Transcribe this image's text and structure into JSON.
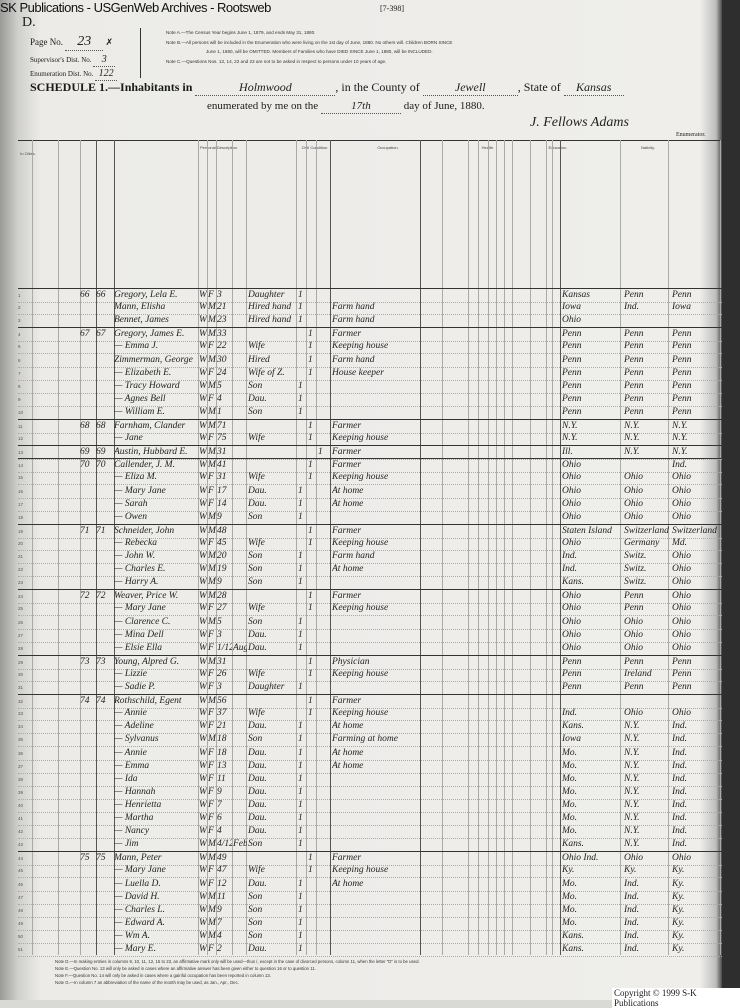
{
  "watermark": "SK Publications - USGenWeb Archives - Rootsweb",
  "form_code": "[7-398]",
  "corner_letter": "D.",
  "header": {
    "page_label": "Page No.",
    "page_no": "23",
    "page_mark": "✗",
    "supervisor_label": "Supervisor's Dist. No.",
    "supervisor_no": "3",
    "enumeration_label": "Enumeration Dist. No.",
    "enumeration_no": "122",
    "note_a": "Note A.—The Census Year begins June 1, 1879, and ends May 31, 1880.",
    "note_b": "Note B.—All persons will be included in the Enumeration who were living on the 1st day of June, 1880. No others will. Children BORN SINCE",
    "note_b2": "June 1, 1880, will be OMITTED. Members of Families who have DIED SINCE June 1, 1880, will be INCLUDED.",
    "note_c": "Note C.—Questions Nos. 13, 14, 22 and 23 are not to be asked in respect to persons under 10 years of age.",
    "schedule_label": "SCHEDULE 1.—Inhabitants in",
    "place": "Holmwood",
    "county_label": ", in the County of",
    "county": "Jewell",
    "state_label": ", State of",
    "state": "Kansas",
    "enumerated_label": "enumerated by me on the",
    "day": "17th",
    "month_label": "day of June, 1880.",
    "enumerator": "J. Fellows Adams",
    "enumerator_label": "Enumerator."
  },
  "column_groups": [
    "In Cities.",
    "Personal Description.",
    "Civil Condition.",
    "Occupation.",
    "Health.",
    "Education.",
    "Nativity."
  ],
  "rows": [
    {
      "n": "1",
      "dw": "66",
      "fa": "66",
      "name": "Gregory, Lela E.",
      "c": "W",
      "s": "F",
      "a": "3",
      "rel": "Daughter",
      "single": "1",
      "occ": "",
      "b": "Kansas",
      "f": "Penn",
      "m": "Penn"
    },
    {
      "n": "2",
      "dw": "",
      "fa": "",
      "name": "Mann, Elisha",
      "c": "W",
      "s": "M",
      "a": "21",
      "rel": "Hired hand",
      "single": "1",
      "occ": "Farm hand",
      "b": "Iowa",
      "f": "Ind.",
      "m": "Iowa"
    },
    {
      "n": "3",
      "dw": "",
      "fa": "",
      "name": "Bennet, James",
      "c": "W",
      "s": "M",
      "a": "23",
      "rel": "Hired hand",
      "single": "1",
      "occ": "Farm hand",
      "b": "Ohio",
      "f": "",
      "m": ""
    },
    {
      "n": "4",
      "dw": "67",
      "fa": "67",
      "name": "Gregory, James E.",
      "c": "W",
      "s": "M",
      "a": "33",
      "rel": "",
      "married": "1",
      "occ": "Farmer",
      "b": "Penn",
      "f": "Penn",
      "m": "Penn"
    },
    {
      "n": "5",
      "dw": "",
      "fa": "",
      "name": "— Emma J.",
      "c": "W",
      "s": "F",
      "a": "22",
      "rel": "Wife",
      "married": "1",
      "occ": "Keeping house",
      "b": "Penn",
      "f": "Penn",
      "m": "Penn"
    },
    {
      "n": "6",
      "dw": "",
      "fa": "",
      "name": "Zimmerman, George",
      "c": "W",
      "s": "M",
      "a": "30",
      "rel": "Hired",
      "married": "1",
      "occ": "Farm hand",
      "b": "Penn",
      "f": "Penn",
      "m": "Penn"
    },
    {
      "n": "7",
      "dw": "",
      "fa": "",
      "name": "— Elizabeth E.",
      "c": "W",
      "s": "F",
      "a": "24",
      "rel": "Wife of Z.",
      "married": "1",
      "occ": "House keeper",
      "b": "Penn",
      "f": "Penn",
      "m": "Penn"
    },
    {
      "n": "8",
      "dw": "",
      "fa": "",
      "name": "— Tracy Howard",
      "c": "W",
      "s": "M",
      "a": "5",
      "rel": "Son",
      "single": "1",
      "occ": "",
      "b": "Penn",
      "f": "Penn",
      "m": "Penn"
    },
    {
      "n": "9",
      "dw": "",
      "fa": "",
      "name": "— Agnes Bell",
      "c": "W",
      "s": "F",
      "a": "4",
      "rel": "Dau.",
      "single": "1",
      "occ": "",
      "b": "Penn",
      "f": "Penn",
      "m": "Penn"
    },
    {
      "n": "10",
      "dw": "",
      "fa": "",
      "name": "— William E.",
      "c": "W",
      "s": "M",
      "a": "1",
      "rel": "Son",
      "single": "1",
      "occ": "",
      "b": "Penn",
      "f": "Penn",
      "m": "Penn"
    },
    {
      "n": "11",
      "dw": "68",
      "fa": "68",
      "name": "Farnham, Clander",
      "c": "W",
      "s": "M",
      "a": "71",
      "rel": "",
      "married": "1",
      "occ": "Farmer",
      "b": "N.Y.",
      "f": "N.Y.",
      "m": "N.Y."
    },
    {
      "n": "12",
      "dw": "",
      "fa": "",
      "name": "— Jane",
      "c": "W",
      "s": "F",
      "a": "75",
      "rel": "Wife",
      "married": "1",
      "occ": "Keeping house",
      "b": "N.Y.",
      "f": "N.Y.",
      "m": "N.Y."
    },
    {
      "n": "13",
      "dw": "69",
      "fa": "69",
      "name": "Austin, Hubbard E.",
      "c": "W",
      "s": "M",
      "a": "31",
      "rel": "",
      "widowed": "1",
      "occ": "Farmer",
      "b": "Ill.",
      "f": "N.Y.",
      "m": "N.Y."
    },
    {
      "n": "14",
      "dw": "70",
      "fa": "70",
      "name": "Callender, J. M.",
      "c": "W",
      "s": "M",
      "a": "41",
      "rel": "",
      "married": "1",
      "occ": "Farmer",
      "b": "Ohio",
      "f": "",
      "m": "Ind."
    },
    {
      "n": "15",
      "dw": "",
      "fa": "",
      "name": "— Eliza M.",
      "c": "W",
      "s": "F",
      "a": "31",
      "rel": "Wife",
      "married": "1",
      "occ": "Keeping house",
      "b": "Ohio",
      "f": "Ohio",
      "m": "Ohio"
    },
    {
      "n": "16",
      "dw": "",
      "fa": "",
      "name": "— Mary Jane",
      "c": "W",
      "s": "F",
      "a": "17",
      "rel": "Dau.",
      "single": "1",
      "occ": "At home",
      "b": "Ohio",
      "f": "Ohio",
      "m": "Ohio"
    },
    {
      "n": "17",
      "dw": "",
      "fa": "",
      "name": "— Sarah",
      "c": "W",
      "s": "F",
      "a": "14",
      "rel": "Dau.",
      "single": "1",
      "occ": "At home",
      "b": "Ohio",
      "f": "Ohio",
      "m": "Ohio"
    },
    {
      "n": "18",
      "dw": "",
      "fa": "",
      "name": "— Owen",
      "c": "W",
      "s": "M",
      "a": "9",
      "rel": "Son",
      "single": "1",
      "occ": "",
      "b": "Ohio",
      "f": "Ohio",
      "m": "Ohio"
    },
    {
      "n": "19",
      "dw": "71",
      "fa": "71",
      "name": "Schneider, John",
      "c": "W",
      "s": "M",
      "a": "48",
      "rel": "",
      "married": "1",
      "occ": "Farmer",
      "b": "Staten Island",
      "f": "Switzerland",
      "m": "Switzerland"
    },
    {
      "n": "20",
      "dw": "",
      "fa": "",
      "name": "— Rebecka",
      "c": "W",
      "s": "F",
      "a": "45",
      "rel": "Wife",
      "married": "1",
      "occ": "Keeping house",
      "b": "Ohio",
      "f": "Germany",
      "m": "Md."
    },
    {
      "n": "21",
      "dw": "",
      "fa": "",
      "name": "— John W.",
      "c": "W",
      "s": "M",
      "a": "20",
      "rel": "Son",
      "single": "1",
      "occ": "Farm hand",
      "b": "Ind.",
      "f": "Switz.",
      "m": "Ohio"
    },
    {
      "n": "22",
      "dw": "",
      "fa": "",
      "name": "— Charles E.",
      "c": "W",
      "s": "M",
      "a": "19",
      "rel": "Son",
      "single": "1",
      "occ": "At home",
      "b": "Ind.",
      "f": "Switz.",
      "m": "Ohio"
    },
    {
      "n": "23",
      "dw": "",
      "fa": "",
      "name": "— Harry A.",
      "c": "W",
      "s": "M",
      "a": "9",
      "rel": "Son",
      "single": "1",
      "occ": "",
      "b": "Kans.",
      "f": "Switz.",
      "m": "Ohio"
    },
    {
      "n": "24",
      "dw": "72",
      "fa": "72",
      "name": "Weaver, Price W.",
      "c": "W",
      "s": "M",
      "a": "28",
      "rel": "",
      "married": "1",
      "occ": "Farmer",
      "b": "Ohio",
      "f": "Penn",
      "m": "Ohio"
    },
    {
      "n": "25",
      "dw": "",
      "fa": "",
      "name": "— Mary Jane",
      "c": "W",
      "s": "F",
      "a": "27",
      "rel": "Wife",
      "married": "1",
      "occ": "Keeping house",
      "b": "Ohio",
      "f": "Penn",
      "m": "Ohio"
    },
    {
      "n": "26",
      "dw": "",
      "fa": "",
      "name": "— Clarence C.",
      "c": "W",
      "s": "M",
      "a": "5",
      "rel": "Son",
      "single": "1",
      "occ": "",
      "b": "Ohio",
      "f": "Ohio",
      "m": "Ohio"
    },
    {
      "n": "27",
      "dw": "",
      "fa": "",
      "name": "— Mina Dell",
      "c": "W",
      "s": "F",
      "a": "3",
      "rel": "Dau.",
      "single": "1",
      "occ": "",
      "b": "Ohio",
      "f": "Ohio",
      "m": "Ohio"
    },
    {
      "n": "28",
      "dw": "",
      "fa": "",
      "name": "— Elsie Ella",
      "c": "W",
      "s": "F",
      "a": "1/12",
      "mo": "Aug",
      "rel": "Dau.",
      "single": "1",
      "occ": "",
      "b": "Ohio",
      "f": "Ohio",
      "m": "Ohio"
    },
    {
      "n": "29",
      "dw": "73",
      "fa": "73",
      "name": "Young, Alpred G.",
      "c": "W",
      "s": "M",
      "a": "31",
      "rel": "",
      "married": "1",
      "occ": "Physician",
      "b": "Penn",
      "f": "Penn",
      "m": "Penn"
    },
    {
      "n": "30",
      "dw": "",
      "fa": "",
      "name": "— Lizzie",
      "c": "W",
      "s": "F",
      "a": "26",
      "rel": "Wife",
      "married": "1",
      "occ": "Keeping house",
      "b": "Penn",
      "f": "Ireland",
      "m": "Penn"
    },
    {
      "n": "31",
      "dw": "",
      "fa": "",
      "name": "— Sadie P.",
      "c": "W",
      "s": "F",
      "a": "3",
      "rel": "Daughter",
      "single": "1",
      "occ": "",
      "b": "Penn",
      "f": "Penn",
      "m": "Penn"
    },
    {
      "n": "32",
      "dw": "74",
      "fa": "74",
      "name": "Rothschild, Egent",
      "c": "W",
      "s": "M",
      "a": "56",
      "rel": "",
      "married": "1",
      "occ": "Farmer",
      "b": "",
      "f": "",
      "m": ""
    },
    {
      "n": "33",
      "dw": "",
      "fa": "",
      "name": "— Annie",
      "c": "W",
      "s": "F",
      "a": "37",
      "rel": "Wife",
      "married": "1",
      "occ": "Keeping house",
      "b": "Ind.",
      "f": "Ohio",
      "m": "Ohio"
    },
    {
      "n": "34",
      "dw": "",
      "fa": "",
      "name": "— Adeline",
      "c": "W",
      "s": "F",
      "a": "21",
      "rel": "Dau.",
      "single": "1",
      "occ": "At home",
      "b": "Kans.",
      "f": "N.Y.",
      "m": "Ind."
    },
    {
      "n": "35",
      "dw": "",
      "fa": "",
      "name": "— Sylvanus",
      "c": "W",
      "s": "M",
      "a": "18",
      "rel": "Son",
      "single": "1",
      "occ": "Farming at home",
      "b": "Iowa",
      "f": "N.Y.",
      "m": "Ind."
    },
    {
      "n": "36",
      "dw": "",
      "fa": "",
      "name": "— Annie",
      "c": "W",
      "s": "F",
      "a": "18",
      "rel": "Dau.",
      "single": "1",
      "occ": "At home",
      "b": "Mo.",
      "f": "N.Y.",
      "m": "Ind."
    },
    {
      "n": "37",
      "dw": "",
      "fa": "",
      "name": "— Emma",
      "c": "W",
      "s": "F",
      "a": "13",
      "rel": "Dau.",
      "single": "1",
      "occ": "At home",
      "b": "Mo.",
      "f": "N.Y.",
      "m": "Ind."
    },
    {
      "n": "38",
      "dw": "",
      "fa": "",
      "name": "— Ida",
      "c": "W",
      "s": "F",
      "a": "11",
      "rel": "Dau.",
      "single": "1",
      "occ": "",
      "b": "Mo.",
      "f": "N.Y.",
      "m": "Ind."
    },
    {
      "n": "39",
      "dw": "",
      "fa": "",
      "name": "— Hannah",
      "c": "W",
      "s": "F",
      "a": "9",
      "rel": "Dau.",
      "single": "1",
      "occ": "",
      "b": "Mo.",
      "f": "N.Y.",
      "m": "Ind."
    },
    {
      "n": "40",
      "dw": "",
      "fa": "",
      "name": "— Henrietta",
      "c": "W",
      "s": "F",
      "a": "7",
      "rel": "Dau.",
      "single": "1",
      "occ": "",
      "b": "Mo.",
      "f": "N.Y.",
      "m": "Ind."
    },
    {
      "n": "41",
      "dw": "",
      "fa": "",
      "name": "— Martha",
      "c": "W",
      "s": "F",
      "a": "6",
      "rel": "Dau.",
      "single": "1",
      "occ": "",
      "b": "Mo.",
      "f": "N.Y.",
      "m": "Ind."
    },
    {
      "n": "42",
      "dw": "",
      "fa": "",
      "name": "— Nancy",
      "c": "W",
      "s": "F",
      "a": "4",
      "rel": "Dau.",
      "single": "1",
      "occ": "",
      "b": "Mo.",
      "f": "N.Y.",
      "m": "Ind."
    },
    {
      "n": "43",
      "dw": "",
      "fa": "",
      "name": "— Jim",
      "c": "W",
      "s": "M",
      "a": "4/12",
      "mo": "Feb.",
      "rel": "Son",
      "single": "1",
      "occ": "",
      "b": "Kans.",
      "f": "N.Y.",
      "m": "Ind."
    },
    {
      "n": "44",
      "dw": "75",
      "fa": "75",
      "name": "Mann, Peter",
      "c": "W",
      "s": "M",
      "a": "49",
      "rel": "",
      "married": "1",
      "occ": "Farmer",
      "b": "Ohio Ind.",
      "f": "Ohio",
      "m": "Ohio"
    },
    {
      "n": "45",
      "dw": "",
      "fa": "",
      "name": "— Mary Jane",
      "c": "W",
      "s": "F",
      "a": "47",
      "rel": "Wife",
      "married": "1",
      "occ": "Keeping house",
      "b": "Ky.",
      "f": "Ky.",
      "m": "Ky."
    },
    {
      "n": "46",
      "dw": "",
      "fa": "",
      "name": "— Luella D.",
      "c": "W",
      "s": "F",
      "a": "12",
      "rel": "Dau.",
      "single": "1",
      "occ": "At home",
      "b": "Mo.",
      "f": "Ind.",
      "m": "Ky."
    },
    {
      "n": "47",
      "dw": "",
      "fa": "",
      "name": "— David H.",
      "c": "W",
      "s": "M",
      "a": "11",
      "rel": "Son",
      "single": "1",
      "occ": "",
      "b": "Mo.",
      "f": "Ind.",
      "m": "Ky."
    },
    {
      "n": "48",
      "dw": "",
      "fa": "",
      "name": "— Charles L.",
      "c": "W",
      "s": "M",
      "a": "9",
      "rel": "Son",
      "single": "1",
      "occ": "",
      "b": "Mo.",
      "f": "Ind.",
      "m": "Ky."
    },
    {
      "n": "49",
      "dw": "",
      "fa": "",
      "name": "— Edward A.",
      "c": "W",
      "s": "M",
      "a": "7",
      "rel": "Son",
      "single": "1",
      "occ": "",
      "b": "Mo.",
      "f": "Ind.",
      "m": "Ky."
    },
    {
      "n": "50",
      "dw": "",
      "fa": "",
      "name": "— Wm A.",
      "c": "W",
      "s": "M",
      "a": "4",
      "rel": "Son",
      "single": "1",
      "occ": "",
      "b": "Kans.",
      "f": "Ind.",
      "m": "Ky."
    },
    {
      "n": "51",
      "dw": "",
      "fa": "",
      "name": "— Mary E.",
      "c": "W",
      "s": "F",
      "a": "2",
      "rel": "Dau.",
      "single": "1",
      "occ": "",
      "b": "Kans.",
      "f": "Ind.",
      "m": "Ky."
    }
  ],
  "footer_notes": [
    "Note D.—In making entries in columns 9, 10, 11, 12, 15 to 23, an affirmative mark only will be used—thus /, except in the case of divorced persons, column 11, when the letter \"D\" is to be used.",
    "Note E.—Question No. 13 will only be asked in cases where an affirmative answer has been given either to question 16 or to question 11.",
    "Note F.—Question No. 14 will only be asked in cases where a gainful occupation has been reported in column 13.",
    "Note G.—In column 7 an abbreviation of the name of the month may be used, as Jan., Apr., Dec."
  ],
  "copyright": "Copyright © 1999 S-K Publications",
  "colors": {
    "paper": "#efeeeb",
    "ink": "#1a1a1a",
    "edge": "#2e2e2e"
  }
}
